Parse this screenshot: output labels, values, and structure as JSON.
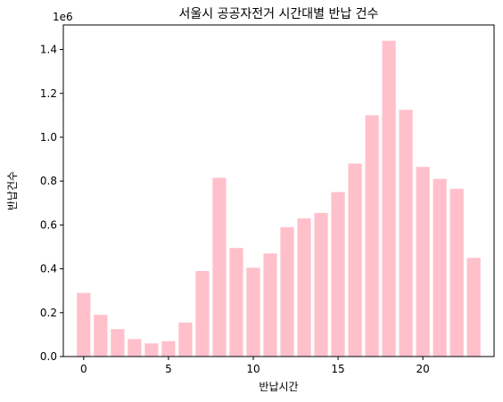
{
  "chart_data": {
    "type": "bar",
    "title": "서울시 공공자전거 시간대별 반납 건수",
    "xlabel": "반납시간",
    "ylabel": "반납건수",
    "y_offset_label": "1e6",
    "bar_color": "#FFC0CB",
    "x": [
      0,
      1,
      2,
      3,
      4,
      5,
      6,
      7,
      8,
      9,
      10,
      11,
      12,
      13,
      14,
      15,
      16,
      17,
      18,
      19,
      20,
      21,
      22,
      23
    ],
    "values": [
      290000,
      190000,
      125000,
      80000,
      60000,
      70000,
      155000,
      390000,
      815000,
      495000,
      405000,
      470000,
      590000,
      630000,
      655000,
      750000,
      880000,
      1100000,
      1440000,
      1125000,
      865000,
      810000,
      765000,
      450000
    ],
    "xlim": [
      -1.2,
      24.2
    ],
    "ylim": [
      0,
      1.512
    ],
    "x_ticks": [
      0,
      5,
      10,
      15,
      20
    ],
    "x_tick_labels": [
      "0",
      "5",
      "10",
      "15",
      "20"
    ],
    "y_ticks": [
      0,
      0.2,
      0.4,
      0.6,
      0.8,
      1.0,
      1.2,
      1.4
    ],
    "y_tick_labels": [
      "0.0",
      "0.2",
      "0.4",
      "0.6",
      "0.8",
      "1.0",
      "1.2",
      "1.4"
    ],
    "grid": false,
    "legend": "none"
  }
}
